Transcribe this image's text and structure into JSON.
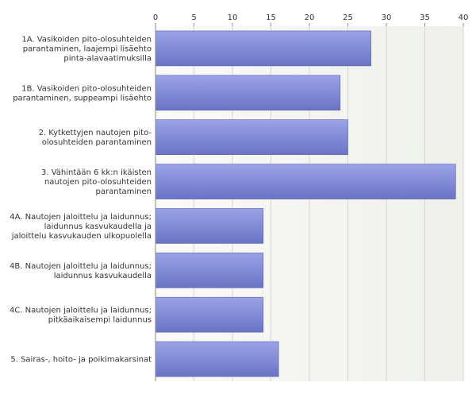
{
  "chart_data": {
    "type": "bar",
    "orientation": "horizontal",
    "title": "",
    "xlabel": "",
    "ylabel": "",
    "xlim": [
      0,
      40
    ],
    "x_ticks": [
      0,
      5,
      10,
      15,
      20,
      25,
      30,
      35,
      40
    ],
    "x_axis_position": "top",
    "grid": true,
    "categories": [
      [
        "1A. Vasikoiden pito-olosuhteiden",
        "parantaminen, laajempi lisäehto",
        "pinta-alavaatimuksilla"
      ],
      [
        "1B. Vasikoiden pito-olosuhteiden",
        "parantaminen, suppeampi lisäehto"
      ],
      [
        "2. Kytkettyjen nautojen pito-",
        "olosuhteiden parantaminen"
      ],
      [
        "3. Vähintään 6 kk:n ikäisten",
        "nautojen pito-olosuhteiden",
        "parantaminen"
      ],
      [
        "4A. Nautojen jaloittelu ja laidunnus;",
        "laidunnus kasvukaudella ja",
        "jaloittelu kasvukauden ulkopuolella"
      ],
      [
        "4B. Nautojen jaloittelu ja laidunnus;",
        "laidunnus kasvukaudella"
      ],
      [
        "4C. Nautojen jaloittelu ja laidunnus;",
        "pitkäaikaisempi laidunnus"
      ],
      [
        "5. Sairas-, hoito- ja poikimakarsinat"
      ]
    ],
    "values": [
      28,
      24,
      25,
      39,
      14,
      14,
      14,
      16
    ],
    "colors": {
      "bar_top": "#9aa3e6",
      "bar_bottom": "#6a74c6",
      "bar_stroke": "#5862b0",
      "plot_bg": "#f3f4f1",
      "grid": "#d4d6d0",
      "axis": "#8a8c86"
    }
  }
}
